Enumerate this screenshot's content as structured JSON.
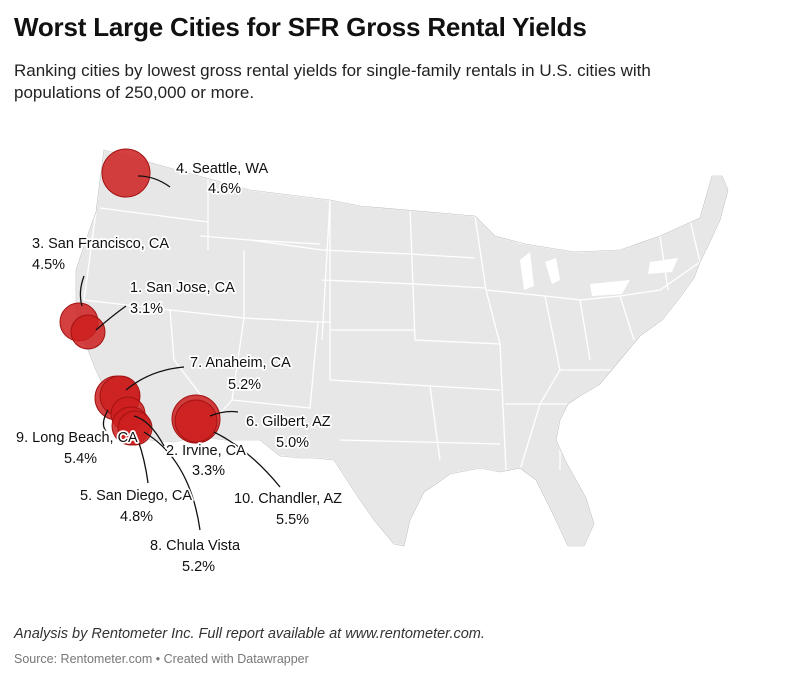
{
  "title": "Worst Large Cities for SFR Gross Rental Yields",
  "subtitle": "Ranking cities by lowest gross rental yields for single-family rentals in U.S. cities with populations of 250,000 or more.",
  "notes": "Analysis by Rentometer Inc. Full report available at www.rentometer.com.",
  "source": "Source: Rentometer.com • Created with Datawrapper",
  "colors": {
    "marker": "#cc1f1f",
    "land": "#e7e7e7",
    "border": "#ffffff"
  },
  "cities": [
    {
      "rank": "1.",
      "name": "San Jose, CA",
      "yield": "3.1%",
      "lat": 37.34,
      "lon": -121.89
    },
    {
      "rank": "2.",
      "name": "Irvine, CA",
      "yield": "3.3%",
      "lat": 33.68,
      "lon": -117.83
    },
    {
      "rank": "3.",
      "name": "San Francisco, CA",
      "yield": "4.5%",
      "lat": 37.77,
      "lon": -122.42
    },
    {
      "rank": "4.",
      "name": "Seattle, WA",
      "yield": "4.6%",
      "lat": 47.61,
      "lon": -122.33
    },
    {
      "rank": "5.",
      "name": "San Diego, CA",
      "yield": "4.8%",
      "lat": 32.72,
      "lon": -117.16
    },
    {
      "rank": "6.",
      "name": "Gilbert, AZ",
      "yield": "5.0%",
      "lat": 33.35,
      "lon": -111.79
    },
    {
      "rank": "7.",
      "name": "Anaheim, CA",
      "yield": "5.2%",
      "lat": 33.84,
      "lon": -117.91
    },
    {
      "rank": "8.",
      "name": "Chula Vista",
      "yield": "5.2%",
      "lat": 32.64,
      "lon": -117.08
    },
    {
      "rank": "9.",
      "name": "Long Beach, CA",
      "yield": "5.4%",
      "lat": 33.77,
      "lon": -118.19
    },
    {
      "rank": "10.",
      "name": "Chandler, AZ",
      "yield": "5.5%",
      "lat": 33.31,
      "lon": -111.84
    }
  ]
}
